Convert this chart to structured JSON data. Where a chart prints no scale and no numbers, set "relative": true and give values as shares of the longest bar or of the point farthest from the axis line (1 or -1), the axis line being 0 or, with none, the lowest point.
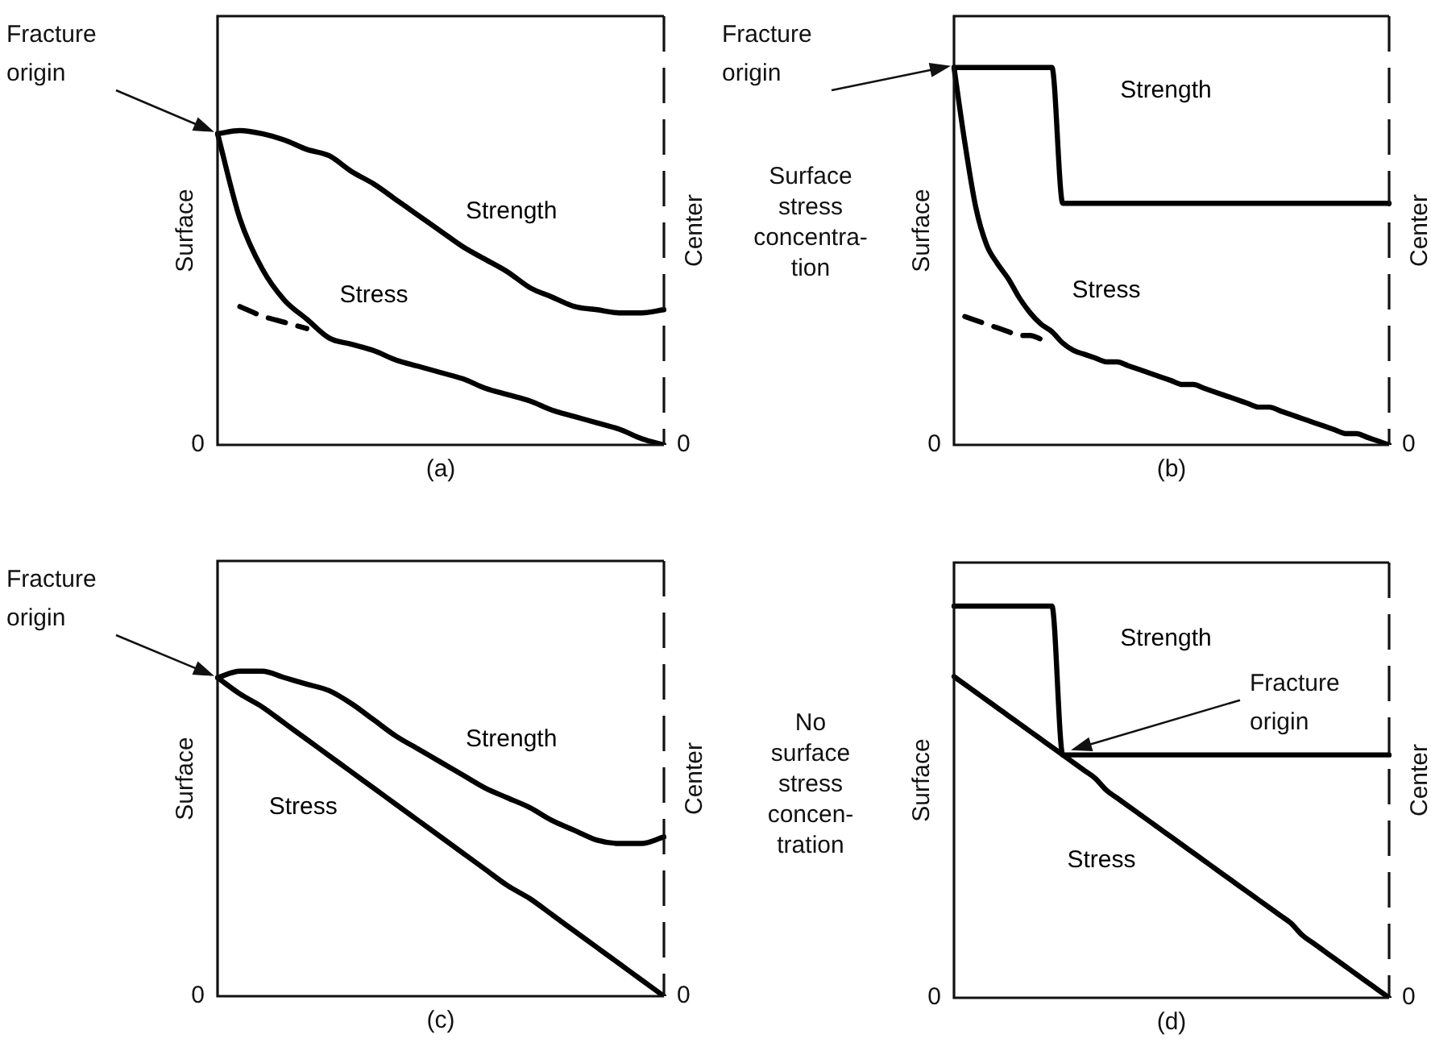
{
  "chart_data": [
    {
      "type": "line",
      "relative": true,
      "xlabel": "(a)",
      "ylabel": "Surface",
      "y2label": "Center",
      "categories": [
        null,
        null,
        null,
        null,
        null,
        null,
        null,
        null,
        null,
        null,
        null,
        null,
        null,
        null,
        null,
        null,
        null,
        null,
        null,
        null,
        null
      ],
      "series": [
        {
          "name": "Strength",
          "color": "#000000",
          "values": [
            0.99,
            1.0,
            0.99,
            0.97,
            0.94,
            0.92,
            0.87,
            0.83,
            0.78,
            0.73,
            0.68,
            0.63,
            0.59,
            0.55,
            0.5,
            0.47,
            0.44,
            0.43,
            0.42,
            0.42,
            0.43
          ]
        },
        {
          "name": "Stress",
          "color": "#000000",
          "values": [
            0.99,
            0.72,
            0.56,
            0.46,
            0.4,
            0.34,
            0.32,
            0.3,
            0.27,
            0.25,
            0.23,
            0.21,
            0.18,
            0.16,
            0.14,
            0.11,
            0.09,
            0.07,
            0.05,
            0.02,
            0
          ]
        },
        {
          "color": "#000000",
          "line_style": "dashed",
          "values": [
            null,
            0.44,
            0.41,
            0.39,
            0.37,
            null,
            null,
            null,
            null,
            null,
            null,
            null,
            null,
            null,
            null,
            null,
            null,
            null,
            null,
            null,
            null
          ]
        }
      ],
      "annotations": [
        "Fracture origin",
        "0",
        "0"
      ]
    },
    {
      "type": "line",
      "relative": true,
      "xlabel": "(b)",
      "ylabel": "Surface",
      "y2label": "Center",
      "categories": [
        null,
        null,
        null,
        null,
        null,
        null,
        null,
        null,
        null,
        null,
        null,
        null,
        null,
        null,
        null,
        null,
        null,
        null,
        null,
        null,
        null,
        null,
        null,
        null,
        null,
        null,
        null,
        null,
        null,
        null,
        null,
        null,
        null,
        null,
        null,
        null,
        null,
        null,
        null,
        null,
        null
      ],
      "series": [
        {
          "name": "Strength",
          "color": "#000000",
          "values": [
            1.0,
            1.0,
            1.0,
            1.0,
            1.0,
            1.0,
            1.0,
            1.0,
            1.0,
            1.0,
            0.64,
            0.64,
            0.64,
            0.64,
            0.64,
            0.64,
            0.64,
            0.64,
            0.64,
            0.64,
            0.64,
            0.64,
            0.64,
            0.64,
            0.64,
            0.64,
            0.64,
            0.64,
            0.64,
            0.64,
            0.64,
            0.64,
            0.64,
            0.64,
            0.64,
            0.64,
            0.64,
            0.64,
            0.64,
            0.64,
            0.64
          ]
        },
        {
          "name": "Stress",
          "color": "#000000",
          "values": [
            1.0,
            0.8,
            0.63,
            0.53,
            0.48,
            0.44,
            0.39,
            0.35,
            0.32,
            0.3,
            0.27,
            0.25,
            0.24,
            0.23,
            0.22,
            0.22,
            0.21,
            0.2,
            0.19,
            0.18,
            0.17,
            0.16,
            0.16,
            0.15,
            0.14,
            0.13,
            0.12,
            0.11,
            0.1,
            0.1,
            0.09,
            0.08,
            0.07,
            0.06,
            0.05,
            0.04,
            0.03,
            0.03,
            0.02,
            0.01,
            0
          ]
        },
        {
          "color": "#000000",
          "line_style": "dashed",
          "values": [
            null,
            0.34,
            0.33,
            0.32,
            0.31,
            0.3,
            0.29,
            0.29,
            0.28,
            null,
            null,
            null,
            null,
            null,
            null,
            null,
            null,
            null,
            null,
            null,
            null,
            null,
            null,
            null,
            null,
            null,
            null,
            null,
            null,
            null,
            null,
            null,
            null,
            null,
            null,
            null,
            null,
            null,
            null,
            null,
            null
          ]
        }
      ],
      "annotations": [
        "Fracture origin",
        "Surface\nstress\nconcentra-\ntion",
        "0",
        "0"
      ]
    },
    {
      "type": "line",
      "relative": true,
      "xlabel": "(c)",
      "ylabel": "Surface",
      "y2label": "Center",
      "categories": [
        null,
        null,
        null,
        null,
        null,
        null,
        null,
        null,
        null,
        null,
        null,
        null,
        null,
        null,
        null,
        null,
        null,
        null,
        null,
        null,
        null
      ],
      "series": [
        {
          "name": "Strength",
          "color": "#000000",
          "values": [
            0.98,
            1.0,
            1.0,
            0.98,
            0.96,
            0.94,
            0.9,
            0.85,
            0.8,
            0.76,
            0.72,
            0.68,
            0.64,
            0.61,
            0.58,
            0.54,
            0.51,
            0.48,
            0.47,
            0.47,
            0.49
          ]
        },
        {
          "name": "Stress",
          "color": "#000000",
          "values": [
            0.98,
            0.93,
            0.89,
            0.84,
            0.79,
            0.74,
            0.69,
            0.64,
            0.59,
            0.54,
            0.49,
            0.44,
            0.39,
            0.34,
            0.3,
            0.25,
            0.2,
            0.15,
            0.1,
            0.05,
            0
          ]
        }
      ],
      "annotations": [
        "Fracture origin",
        "0",
        "0"
      ]
    },
    {
      "type": "line",
      "relative": true,
      "xlabel": "(d)",
      "ylabel": "Surface",
      "y2label": "Center",
      "categories": [
        null,
        null,
        null,
        null,
        null,
        null,
        null,
        null,
        null,
        null,
        null,
        null,
        null,
        null,
        null,
        null,
        null,
        null,
        null,
        null,
        null,
        null,
        null,
        null,
        null,
        null,
        null,
        null,
        null,
        null,
        null,
        null,
        null,
        null,
        null,
        null,
        null,
        null,
        null,
        null,
        null
      ],
      "series": [
        {
          "name": "Strength",
          "color": "#000000",
          "values": [
            1.0,
            1.0,
            1.0,
            1.0,
            1.0,
            1.0,
            1.0,
            1.0,
            1.0,
            1.0,
            0.62,
            0.62,
            0.62,
            0.62,
            0.62,
            0.62,
            0.62,
            0.62,
            0.62,
            0.62,
            0.62,
            0.62,
            0.62,
            0.62,
            0.62,
            0.62,
            0.62,
            0.62,
            0.62,
            0.62,
            0.62,
            0.62,
            0.62,
            0.62,
            0.62,
            0.62,
            0.62,
            0.62,
            0.62,
            0.62,
            0.62
          ]
        },
        {
          "name": "Stress",
          "color": "#000000",
          "values": [
            0.82,
            0.8,
            0.78,
            0.76,
            0.74,
            0.72,
            0.7,
            0.68,
            0.66,
            0.64,
            0.62,
            0.6,
            0.58,
            0.56,
            0.53,
            0.51,
            0.49,
            0.47,
            0.45,
            0.43,
            0.41,
            0.39,
            0.37,
            0.35,
            0.33,
            0.31,
            0.29,
            0.27,
            0.25,
            0.23,
            0.21,
            0.19,
            0.16,
            0.14,
            0.12,
            0.1,
            0.08,
            0.06,
            0.04,
            0.02,
            0
          ]
        }
      ],
      "annotations": [
        "Fracture origin",
        "No\nsurface\nstress\nconcen-\ntration",
        "0",
        "0"
      ]
    }
  ]
}
